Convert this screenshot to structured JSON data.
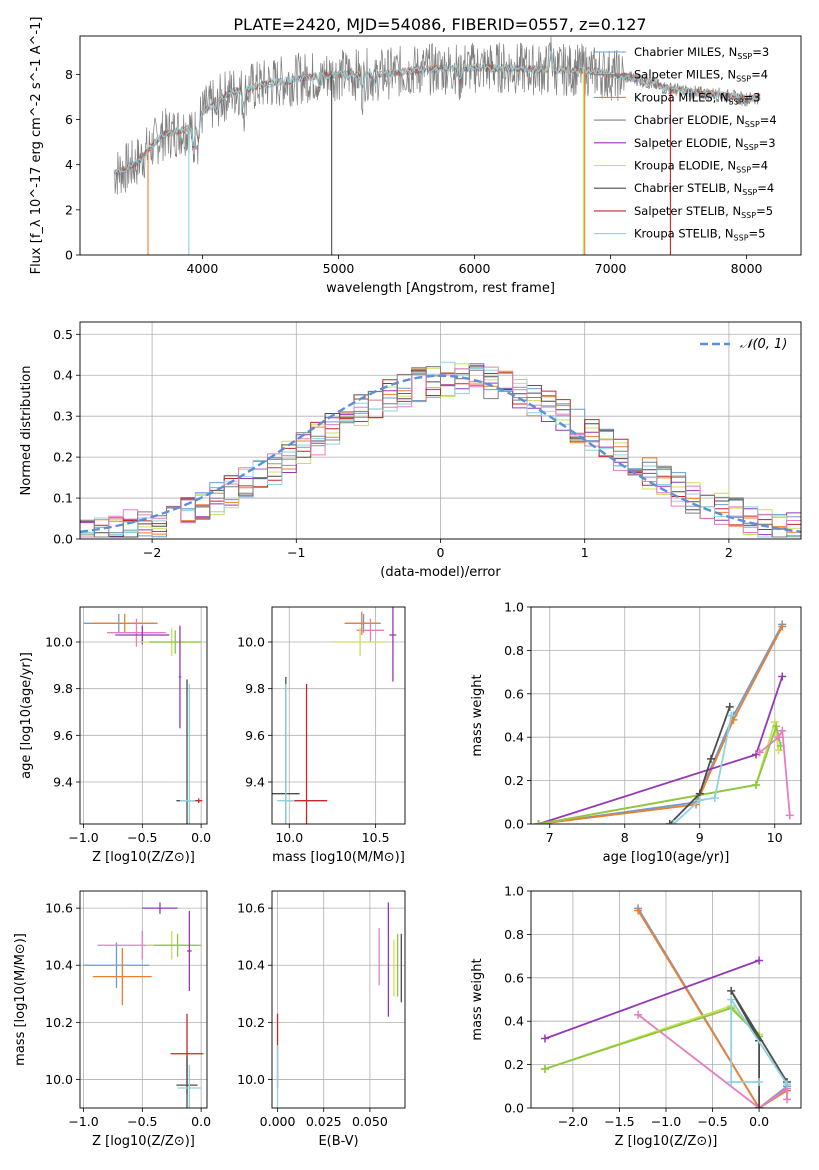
{
  "figure_title": "PLATE=2420, MJD=54086, FIBERID=0557, z=0.127",
  "colors": {
    "chabrier_miles": "#6d9cd4",
    "salpeter_miles": "#7f7f7f",
    "kroupa_miles": "#ee7f2d",
    "chabrier_elodie": "#7f7f7f",
    "salpeter_elodie": "#9637b5",
    "kroupa_elodie": "#c8e05c",
    "chabrier_stelib": "#4d4d4d",
    "salpeter_stelib": "#c62828",
    "kroupa_stelib": "#8fd3de",
    "pink": "#e57ec0",
    "green": "#8ec63f",
    "normal_fit": "#5b8fd9"
  },
  "chart_data": [
    {
      "id": "spectrum",
      "type": "line",
      "xlabel": "wavelength [Angstrom, rest frame]",
      "ylabel": "Flux [f_λ 10^-17 erg cm^-2 s^-1 A^-1]",
      "xlim": [
        3100,
        8400
      ],
      "ylim": [
        0,
        9.7
      ],
      "xticks": [
        4000,
        5000,
        6000,
        7000,
        8000
      ],
      "yticks": [
        0,
        2,
        4,
        6,
        8
      ],
      "grid": false,
      "legend_position": "right",
      "legend": [
        {
          "label": "Chabrier MILES, N_SSP=3",
          "color": "#6d9cd4"
        },
        {
          "label": "Salpeter MILES, N_SSP=4",
          "color": "#7f7f7f"
        },
        {
          "label": "Kroupa MILES, N_SSP=3",
          "color": "#ee7f2d"
        },
        {
          "label": "Chabrier ELODIE, N_SSP=4",
          "color": "#7f7f7f"
        },
        {
          "label": "Salpeter ELODIE, N_SSP=3",
          "color": "#9637b5"
        },
        {
          "label": "Kroupa ELODIE, N_SSP=4",
          "color": "#c8e05c"
        },
        {
          "label": "Chabrier STELIB, N_SSP=4",
          "color": "#4d4d4d"
        },
        {
          "label": "Salpeter STELIB, N_SSP=5",
          "color": "#c62828"
        },
        {
          "label": "Kroupa STELIB, N_SSP=5",
          "color": "#8fd3de"
        }
      ],
      "continuum": {
        "x": [
          3350,
          3500,
          3700,
          3900,
          4000,
          4200,
          4500,
          4800,
          5000,
          5300,
          5600,
          5900,
          6200,
          6500,
          6800,
          7000,
          7200,
          7400,
          7600,
          7800,
          8000,
          8100
        ],
        "y": [
          3.6,
          4.0,
          5.3,
          5.6,
          6.3,
          7.2,
          7.6,
          7.9,
          8.0,
          8.0,
          8.2,
          8.3,
          8.3,
          8.2,
          8.2,
          8.0,
          7.8,
          7.4,
          7.2,
          7.1,
          6.9,
          7.0
        ]
      },
      "drops": [
        {
          "x": 3600,
          "color": "#ee7f2d"
        },
        {
          "x": 3900,
          "color": "#8fd3de"
        },
        {
          "x": 4950,
          "color": "#4d4d4d"
        },
        {
          "x": 6800,
          "color": "#c8e05c"
        },
        {
          "x": 6810,
          "color": "#ee7f2d"
        },
        {
          "x": 7440,
          "color": "#c62828"
        }
      ]
    },
    {
      "id": "residuals",
      "type": "line",
      "xlabel": "(data-model)/error",
      "ylabel": "Normed distribution",
      "xlim": [
        -2.5,
        2.5
      ],
      "ylim": [
        0,
        0.53
      ],
      "xticks": [
        -2,
        -1,
        0,
        1,
        2
      ],
      "yticks": [
        0.0,
        0.1,
        0.2,
        0.3,
        0.4,
        0.5
      ],
      "grid": true,
      "legend_position": "top-right",
      "legend": [
        {
          "label": "N(0,1)",
          "color": "#5b8fd9"
        }
      ],
      "normal_curve": {
        "mu": 0,
        "sigma": 1
      }
    },
    {
      "id": "age_vs_Z",
      "type": "scatter",
      "xlabel": "Z [log10(Z/Z⊙)]",
      "ylabel": "age  [log10(age/yr)]",
      "xlim": [
        -1.03,
        0.05
      ],
      "ylim": [
        9.22,
        10.15
      ],
      "xticks": [
        -1.0,
        -0.5,
        0.0
      ],
      "yticks": [
        9.4,
        9.6,
        9.8,
        10.0
      ],
      "grid": true,
      "points": [
        {
          "x": -0.7,
          "y": 10.08,
          "xerr": 0.3,
          "yerr": 0.04,
          "color": "#6d9cd4"
        },
        {
          "x": -0.65,
          "y": 10.08,
          "xerr": 0.28,
          "yerr": 0.04,
          "color": "#ee7f2d"
        },
        {
          "x": -0.55,
          "y": 10.04,
          "xerr": 0.25,
          "yerr": 0.06,
          "color": "#e57ec0"
        },
        {
          "x": -0.5,
          "y": 10.03,
          "xerr": 0.23,
          "yerr": 0.04,
          "color": "#9637b5"
        },
        {
          "x": -0.25,
          "y": 10.0,
          "xerr": 0.26,
          "yerr": 0.06,
          "color": "#c8e05c"
        },
        {
          "x": -0.22,
          "y": 10.0,
          "xerr": 0.22,
          "yerr": 0.05,
          "color": "#8ec63f"
        },
        {
          "x": -0.18,
          "y": 9.85,
          "xerr": 0.01,
          "yerr": 0.22,
          "color": "#9637b5"
        },
        {
          "x": -0.12,
          "y": 9.32,
          "xerr": 0.09,
          "yerr": 0.52,
          "color": "#4d4d4d"
        },
        {
          "x": -0.1,
          "y": 9.32,
          "xerr": 0.08,
          "yerr": 0.5,
          "color": "#8fd3de"
        },
        {
          "x": -0.02,
          "y": 9.32,
          "xerr": 0.03,
          "yerr": 0.01,
          "color": "#c62828"
        }
      ]
    },
    {
      "id": "age_vs_mass",
      "type": "scatter",
      "xlabel": "mass [log10(M/M⊙)]",
      "ylabel": "",
      "xlim": [
        9.9,
        10.67
      ],
      "ylim": [
        9.22,
        10.15
      ],
      "xticks": [
        10.0,
        10.5
      ],
      "yticks": [
        9.4,
        9.6,
        9.8,
        10.0
      ],
      "grid": true,
      "points": [
        {
          "x": 10.43,
          "y": 10.08,
          "xerr": 0.1,
          "yerr": 0.04,
          "color": "#6d9cd4"
        },
        {
          "x": 10.42,
          "y": 10.08,
          "xerr": 0.1,
          "yerr": 0.05,
          "color": "#ee7f2d"
        },
        {
          "x": 10.47,
          "y": 10.05,
          "xerr": 0.08,
          "yerr": 0.05,
          "color": "#e57ec0"
        },
        {
          "x": 10.41,
          "y": 10.0,
          "xerr": 0.15,
          "yerr": 0.06,
          "color": "#c8e05c"
        },
        {
          "x": 10.6,
          "y": 10.03,
          "xerr": 0.02,
          "yerr": 0.2,
          "color": "#9637b5"
        },
        {
          "x": 9.98,
          "y": 9.35,
          "xerr": 0.08,
          "yerr": 0.5,
          "color": "#4d4d4d"
        },
        {
          "x": 10.1,
          "y": 9.32,
          "xerr": 0.12,
          "yerr": 0.5,
          "color": "#c62828"
        },
        {
          "x": 9.98,
          "y": 9.32,
          "xerr": 0.05,
          "yerr": 0.5,
          "color": "#8fd3de"
        }
      ]
    },
    {
      "id": "mass_weight_vs_age",
      "type": "line",
      "xlabel": "age  [log10(age/yr)]",
      "ylabel": "mass weight",
      "xlim": [
        6.75,
        10.35
      ],
      "ylim": [
        0,
        1
      ],
      "xticks": [
        7,
        8,
        9,
        10
      ],
      "yticks": [
        0.0,
        0.2,
        0.4,
        0.6,
        0.8,
        1.0
      ],
      "grid": true,
      "series": [
        {
          "color": "#6d9cd4",
          "x": [
            6.85,
            8.95,
            9.45,
            10.1
          ],
          "y": [
            0.0,
            0.1,
            0.5,
            0.92
          ]
        },
        {
          "color": "#ee7f2d",
          "x": [
            6.85,
            8.95,
            9.45,
            10.1
          ],
          "y": [
            0.0,
            0.09,
            0.48,
            0.91
          ]
        },
        {
          "color": "#9637b5",
          "x": [
            6.85,
            9.75,
            10.1
          ],
          "y": [
            0.0,
            0.32,
            0.68
          ]
        },
        {
          "color": "#c8e05c",
          "x": [
            6.85,
            9.75,
            10.0,
            10.05
          ],
          "y": [
            0.0,
            0.18,
            0.47,
            0.34
          ]
        },
        {
          "color": "#8ec63f",
          "x": [
            6.85,
            9.75,
            10.02,
            10.08
          ],
          "y": [
            0.0,
            0.18,
            0.45,
            0.36
          ]
        },
        {
          "color": "#e57ec0",
          "x": [
            9.8,
            10.05,
            10.1,
            10.2
          ],
          "y": [
            0.33,
            0.4,
            0.43,
            0.04
          ]
        },
        {
          "color": "#4d4d4d",
          "x": [
            8.6,
            9.0,
            9.15,
            9.4
          ],
          "y": [
            0.0,
            0.14,
            0.3,
            0.54
          ]
        },
        {
          "color": "#8fd3de",
          "x": [
            8.65,
            9.0,
            9.2,
            9.42
          ],
          "y": [
            0.0,
            0.11,
            0.12,
            0.5
          ]
        }
      ]
    },
    {
      "id": "mass_vs_Z",
      "type": "scatter",
      "xlabel": "Z [log10(Z/Z⊙)]",
      "ylabel": "mass [log10(M/M⊙)]",
      "xlim": [
        -1.03,
        0.05
      ],
      "ylim": [
        9.9,
        10.66
      ],
      "xticks": [
        -1.0,
        -0.5,
        0.0
      ],
      "yticks": [
        10.0,
        10.2,
        10.4,
        10.6
      ],
      "grid": true,
      "points": [
        {
          "x": -0.72,
          "y": 10.4,
          "xerr": 0.28,
          "yerr": 0.08,
          "color": "#6d9cd4"
        },
        {
          "x": -0.67,
          "y": 10.36,
          "xerr": 0.25,
          "yerr": 0.1,
          "color": "#ee7f2d"
        },
        {
          "x": -0.5,
          "y": 10.47,
          "xerr": 0.38,
          "yerr": 0.05,
          "color": "#e57ec0"
        },
        {
          "x": -0.35,
          "y": 10.6,
          "xerr": 0.15,
          "yerr": 0.02,
          "color": "#9637b5"
        },
        {
          "x": -0.25,
          "y": 10.47,
          "xerr": 0.22,
          "yerr": 0.05,
          "color": "#c8e05c"
        },
        {
          "x": -0.2,
          "y": 10.47,
          "xerr": 0.2,
          "yerr": 0.04,
          "color": "#8ec63f"
        },
        {
          "x": -0.1,
          "y": 10.45,
          "xerr": 0.02,
          "yerr": 0.14,
          "color": "#9637b5"
        },
        {
          "x": -0.12,
          "y": 10.09,
          "xerr": 0.14,
          "yerr": 0.14,
          "color": "#c62828"
        },
        {
          "x": -0.12,
          "y": 9.98,
          "xerr": 0.09,
          "yerr": 0.1,
          "color": "#4d4d4d"
        },
        {
          "x": -0.1,
          "y": 9.97,
          "xerr": 0.1,
          "yerr": 0.08,
          "color": "#8fd3de"
        }
      ]
    },
    {
      "id": "mass_vs_ebv",
      "type": "scatter",
      "xlabel": "E(B-V)",
      "ylabel": "",
      "xlim": [
        -0.003,
        0.069
      ],
      "ylim": [
        9.9,
        10.66
      ],
      "xticks": [
        0.0,
        0.025,
        0.05
      ],
      "xticklabels": [
        "0.000",
        "0.025",
        "0.050"
      ],
      "yticks": [
        10.0,
        10.2,
        10.4,
        10.6
      ],
      "grid": true,
      "points": [
        {
          "x": 0.0,
          "y": 10.1,
          "xerr": 0,
          "yerr": 0.13,
          "color": "#c62828"
        },
        {
          "x": 0.0,
          "y": 10.0,
          "xerr": 0,
          "yerr": 0.12,
          "color": "#8fd3de"
        },
        {
          "x": 0.055,
          "y": 10.43,
          "xerr": 0,
          "yerr": 0.1,
          "color": "#e57ec0"
        },
        {
          "x": 0.06,
          "y": 10.42,
          "xerr": 0,
          "yerr": 0.2,
          "color": "#9637b5"
        },
        {
          "x": 0.063,
          "y": 10.39,
          "xerr": 0,
          "yerr": 0.1,
          "color": "#c8e05c"
        },
        {
          "x": 0.065,
          "y": 10.4,
          "xerr": 0,
          "yerr": 0.11,
          "color": "#8ec63f"
        },
        {
          "x": 0.067,
          "y": 10.39,
          "xerr": 0,
          "yerr": 0.12,
          "color": "#4d4d4d"
        }
      ]
    },
    {
      "id": "mass_weight_vs_Z",
      "type": "line",
      "xlabel": "Z [log10(Z/Z⊙)]",
      "ylabel": "mass weight",
      "xlim": [
        -2.45,
        0.45
      ],
      "ylim": [
        0,
        1
      ],
      "xticks": [
        -2.0,
        -1.5,
        -1.0,
        -0.5,
        0.0
      ],
      "yticks": [
        0.0,
        0.2,
        0.4,
        0.6,
        0.8,
        1.0
      ],
      "grid": true,
      "series": [
        {
          "color": "#6d9cd4",
          "x": [
            -1.3,
            0.0,
            0.3
          ],
          "y": [
            0.92,
            0.0,
            0.1
          ]
        },
        {
          "color": "#ee7f2d",
          "x": [
            -1.3,
            0.0,
            0.3
          ],
          "y": [
            0.91,
            0.0,
            0.08
          ]
        },
        {
          "color": "#9637b5",
          "x": [
            -2.3,
            0.0
          ],
          "y": [
            0.32,
            0.68
          ]
        },
        {
          "color": "#e57ec0",
          "x": [
            -1.3,
            0.0,
            0.3,
            0.3
          ],
          "y": [
            0.43,
            0.0,
            0.09,
            0.04
          ]
        },
        {
          "color": "#c8e05c",
          "x": [
            -2.3,
            -0.3,
            0.0
          ],
          "y": [
            0.18,
            0.47,
            0.34
          ]
        },
        {
          "color": "#8ec63f",
          "x": [
            -2.3,
            -0.3,
            0.0
          ],
          "y": [
            0.18,
            0.46,
            0.33
          ]
        },
        {
          "color": "#4d4d4d",
          "x": [
            0.3,
            -0.3,
            0.0,
            0.0
          ],
          "y": [
            0.12,
            0.54,
            0.31,
            0.0
          ]
        },
        {
          "color": "#8fd3de",
          "x": [
            0.3,
            -0.3,
            -0.3,
            0.0
          ],
          "y": [
            0.11,
            0.5,
            0.12,
            0.12
          ]
        }
      ]
    }
  ]
}
